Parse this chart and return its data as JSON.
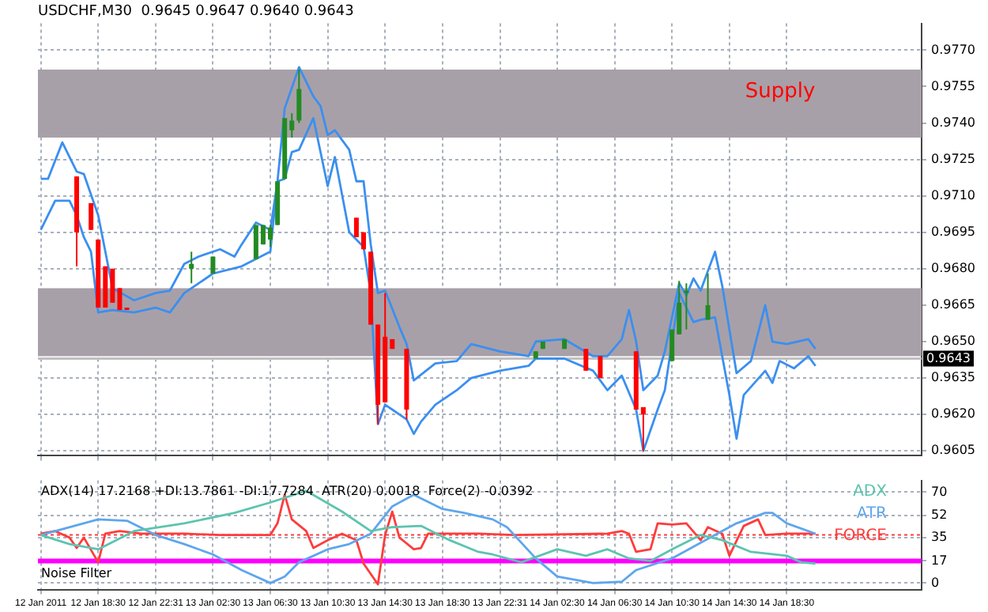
{
  "chart_data": [
    {
      "type": "candlestick",
      "title": "USDCHF,M30  0.9645 0.9647 0.9640 0.9643",
      "x": [
        "2011-01-12T17:00",
        "2011-01-12T18:00",
        "2011-01-12T18:30",
        "2011-01-12T19:00",
        "2011-01-12T19:30",
        "2011-01-12T20:00",
        "2011-01-12T20:30",
        "2011-01-13T01:00",
        "2011-01-13T02:30",
        "2011-01-13T05:30",
        "2011-01-13T06:00",
        "2011-01-13T06:30",
        "2011-01-13T07:00",
        "2011-01-13T07:30",
        "2011-01-13T08:00",
        "2011-01-13T08:30",
        "2011-01-13T12:30",
        "2011-01-13T13:00",
        "2011-01-13T13:30",
        "2011-01-13T14:00",
        "2011-01-13T14:30",
        "2011-01-13T15:00",
        "2011-01-13T16:00",
        "2011-01-14T01:00",
        "2011-01-14T01:30",
        "2011-01-14T03:00",
        "2011-01-14T04:30",
        "2011-01-14T05:30",
        "2011-01-14T08:00",
        "2011-01-14T08:30",
        "2011-01-14T10:30",
        "2011-01-14T11:00",
        "2011-01-14T11:30",
        "2011-01-14T13:00"
      ],
      "ohlc": [
        [
          0.9718,
          0.9718,
          0.9681,
          0.9695
        ],
        [
          0.9707,
          0.9707,
          0.9696,
          0.9696
        ],
        [
          0.9692,
          0.9692,
          0.9664,
          0.9664
        ],
        [
          0.9681,
          0.9681,
          0.9664,
          0.9664
        ],
        [
          0.968,
          0.968,
          0.9666,
          0.9666
        ],
        [
          0.9672,
          0.9672,
          0.9663,
          0.9663
        ],
        [
          0.9664,
          0.9664,
          0.9663,
          0.9663
        ],
        [
          0.968,
          0.9687,
          0.9674,
          0.9682
        ],
        [
          0.9678,
          0.9685,
          0.9678,
          0.9685
        ],
        [
          0.9684,
          0.9698,
          0.9684,
          0.9698
        ],
        [
          0.969,
          0.9698,
          0.969,
          0.9698
        ],
        [
          0.9692,
          0.9698,
          0.9689,
          0.9697
        ],
        [
          0.9698,
          0.9716,
          0.9698,
          0.9716
        ],
        [
          0.9717,
          0.9742,
          0.9717,
          0.9742
        ],
        [
          0.9737,
          0.9744,
          0.9734,
          0.9741
        ],
        [
          0.9741,
          0.9762,
          0.974,
          0.9754
        ],
        [
          0.9701,
          0.9701,
          0.9693,
          0.9693
        ],
        [
          0.9695,
          0.9695,
          0.9688,
          0.9688
        ],
        [
          0.9687,
          0.9687,
          0.9657,
          0.9657
        ],
        [
          0.9657,
          0.9657,
          0.9616,
          0.9624
        ],
        [
          0.9652,
          0.967,
          0.9625,
          0.9625
        ],
        [
          0.9651,
          0.9651,
          0.9647,
          0.9647
        ],
        [
          0.9647,
          0.9647,
          0.9618,
          0.9622
        ],
        [
          0.9643,
          0.9646,
          0.9643,
          0.9646
        ],
        [
          0.9647,
          0.965,
          0.9647,
          0.965
        ],
        [
          0.9647,
          0.9651,
          0.9647,
          0.9651
        ],
        [
          0.9647,
          0.9647,
          0.9638,
          0.9638
        ],
        [
          0.9644,
          0.9644,
          0.9635,
          0.9635
        ],
        [
          0.9646,
          0.9646,
          0.9622,
          0.9622
        ],
        [
          0.9623,
          0.9623,
          0.9605,
          0.962
        ],
        [
          0.9642,
          0.9655,
          0.9642,
          0.9655
        ],
        [
          0.9653,
          0.9675,
          0.9653,
          0.9666
        ],
        [
          0.967,
          0.9674,
          0.9655,
          0.9671
        ],
        [
          0.9659,
          0.9678,
          0.9659,
          0.9665
        ]
      ],
      "colors": [
        "#ff0000",
        "#ff0000",
        "#ff0000",
        "#ff0000",
        "#ff0000",
        "#ff0000",
        "#ff0000",
        "#228b22",
        "#228b22",
        "#228b22",
        "#228b22",
        "#228b22",
        "#228b22",
        "#228b22",
        "#228b22",
        "#228b22",
        "#ff0000",
        "#ff0000",
        "#ff0000",
        "#ff0000",
        "#ff0000",
        "#ff0000",
        "#ff0000",
        "#228b22",
        "#228b22",
        "#228b22",
        "#ff0000",
        "#ff0000",
        "#ff0000",
        "#ff0000",
        "#228b22",
        "#228b22",
        "#228b22",
        "#228b22"
      ],
      "series": [
        {
          "type": "line",
          "color": "#3b8ff0",
          "x": [
            "2011-01-12T14:30",
            "2011-01-12T15:00",
            "2011-01-12T16:00",
            "2011-01-12T17:00",
            "2011-01-12T17:30",
            "2011-01-12T18:30",
            "2011-01-12T19:30",
            "2011-01-12T21:00",
            "2011-01-12T22:30",
            "2011-01-12T23:30",
            "2011-01-13T00:30",
            "2011-01-13T01:30",
            "2011-01-13T03:00",
            "2011-01-13T04:00",
            "2011-01-13T04:30",
            "2011-01-13T05:30",
            "2011-01-13T06:30",
            "2011-01-13T07:00",
            "2011-01-13T07:30",
            "2011-01-13T08:30",
            "2011-01-13T09:30",
            "2011-01-13T10:00",
            "2011-01-13T10:30",
            "2011-01-13T11:00",
            "2011-01-13T12:00",
            "2011-01-13T12:30",
            "2011-01-13T13:00",
            "2011-01-13T13:30",
            "2011-01-13T14:00",
            "2011-01-13T14:30",
            "2011-01-13T15:30",
            "2011-01-13T16:00",
            "2011-01-13T16:30",
            "2011-01-13T18:00",
            "2011-01-13T19:30",
            "2011-01-13T20:30",
            "2011-01-13T22:30",
            "2011-01-14T00:30",
            "2011-01-14T01:00",
            "2011-01-14T03:00",
            "2011-01-14T05:00",
            "2011-01-14T06:00",
            "2011-01-14T07:00",
            "2011-01-14T07:30",
            "2011-01-14T08:00",
            "2011-01-14T08:30",
            "2011-01-14T09:30",
            "2011-01-14T10:00",
            "2011-01-14T11:00",
            "2011-01-14T11:30",
            "2011-01-14T12:00",
            "2011-01-14T12:30",
            "2011-01-14T13:30",
            "2011-01-14T14:00",
            "2011-01-14T15:00",
            "2011-01-14T16:00",
            "2011-01-14T17:00",
            "2011-01-14T17:30",
            "2011-01-14T18:30",
            "2011-01-14T20:00",
            "2011-01-14T20:30"
          ],
          "values": [
            0.9717,
            0.9717,
            0.9732,
            0.972,
            0.9719,
            0.9702,
            0.9672,
            0.9667,
            0.967,
            0.9671,
            0.9682,
            0.9685,
            0.9688,
            0.9685,
            0.969,
            0.9699,
            0.9696,
            0.9716,
            0.9746,
            0.9763,
            0.9751,
            0.9747,
            0.9735,
            0.9737,
            0.9729,
            0.9716,
            0.9716,
            0.969,
            0.967,
            0.9671,
            0.9656,
            0.9649,
            0.9634,
            0.9641,
            0.9642,
            0.9649,
            0.9646,
            0.9644,
            0.965,
            0.9651,
            0.9644,
            0.9644,
            0.9651,
            0.9663,
            0.965,
            0.963,
            0.9636,
            0.9646,
            0.9674,
            0.9669,
            0.9676,
            0.9671,
            0.9687,
            0.9673,
            0.9637,
            0.9642,
            0.9665,
            0.965,
            0.9649,
            0.9651,
            0.9647
          ]
        },
        {
          "type": "line",
          "color": "#3b8ff0",
          "x": [
            "2011-01-12T14:30",
            "2011-01-12T15:30",
            "2011-01-12T16:30",
            "2011-01-12T17:00",
            "2011-01-12T17:30",
            "2011-01-12T18:00",
            "2011-01-12T18:30",
            "2011-01-12T19:30",
            "2011-01-12T21:00",
            "2011-01-12T22:30",
            "2011-01-12T23:30",
            "2011-01-13T00:30",
            "2011-01-13T01:30",
            "2011-01-13T02:30",
            "2011-01-13T04:30",
            "2011-01-13T05:30",
            "2011-01-13T06:30",
            "2011-01-13T07:00",
            "2011-01-13T07:30",
            "2011-01-13T08:00",
            "2011-01-13T08:30",
            "2011-01-13T09:30",
            "2011-01-13T10:30",
            "2011-01-13T11:00",
            "2011-01-13T12:00",
            "2011-01-13T13:00",
            "2011-01-13T13:30",
            "2011-01-13T14:00",
            "2011-01-13T14:30",
            "2011-01-13T15:00",
            "2011-01-13T16:00",
            "2011-01-13T16:30",
            "2011-01-13T17:00",
            "2011-01-13T18:00",
            "2011-01-13T19:30",
            "2011-01-13T20:30",
            "2011-01-13T22:30",
            "2011-01-14T00:30",
            "2011-01-14T01:00",
            "2011-01-14T03:00",
            "2011-01-14T05:00",
            "2011-01-14T06:00",
            "2011-01-14T07:00",
            "2011-01-14T08:00",
            "2011-01-14T08:30",
            "2011-01-14T09:30",
            "2011-01-14T10:00",
            "2011-01-14T11:00",
            "2011-01-14T12:00",
            "2011-01-14T12:30",
            "2011-01-14T13:30",
            "2011-01-14T14:00",
            "2011-01-14T14:30",
            "2011-01-14T15:00",
            "2011-01-14T15:30",
            "2011-01-14T17:00",
            "2011-01-14T17:30",
            "2011-01-14T18:00",
            "2011-01-14T19:00",
            "2011-01-14T20:00",
            "2011-01-14T20:30"
          ],
          "values": [
            0.9696,
            0.9708,
            0.9708,
            0.9702,
            0.9693,
            0.9687,
            0.9662,
            0.9663,
            0.9662,
            0.9664,
            0.9662,
            0.967,
            0.9674,
            0.9678,
            0.9681,
            0.9684,
            0.9687,
            0.9716,
            0.9717,
            0.9728,
            0.9729,
            0.9742,
            0.9714,
            0.9726,
            0.9695,
            0.9689,
            0.967,
            0.9616,
            0.9624,
            0.9622,
            0.9618,
            0.9612,
            0.9617,
            0.9624,
            0.963,
            0.9635,
            0.9638,
            0.964,
            0.9643,
            0.9643,
            0.9638,
            0.963,
            0.9636,
            0.9622,
            0.9605,
            0.9622,
            0.963,
            0.967,
            0.9658,
            0.9659,
            0.966,
            0.9644,
            0.9628,
            0.961,
            0.9628,
            0.9638,
            0.9633,
            0.9642,
            0.9639,
            0.9644,
            0.964
          ]
        }
      ],
      "xlim": [
        "2011-01-12T14:18",
        "2011-01-15T03:54"
      ],
      "xticks": [
        {
          "value": "2011-01-12T14:30",
          "label": null
        },
        {
          "value": "2011-01-12T18:30",
          "label": null
        },
        {
          "value": "2011-01-12T22:31",
          "label": null
        },
        {
          "value": "2011-01-13T02:30",
          "label": null
        },
        {
          "value": "2011-01-13T06:30",
          "label": null
        },
        {
          "value": "2011-01-13T10:30",
          "label": null
        },
        {
          "value": "2011-01-13T14:30",
          "label": null
        },
        {
          "value": "2011-01-13T18:30",
          "label": null
        },
        {
          "value": "2011-01-13T22:31",
          "label": null
        },
        {
          "value": "2011-01-14T02:30",
          "label": null
        },
        {
          "value": "2011-01-14T06:30",
          "label": null
        },
        {
          "value": "2011-01-14T10:30",
          "label": null
        },
        {
          "value": "2011-01-14T14:30",
          "label": null
        },
        {
          "value": "2011-01-14T18:30",
          "label": null
        }
      ],
      "ylim": [
        0.9603,
        0.9781
      ],
      "yticks": [
        {
          "value": 0.9605,
          "label": "0.9605"
        },
        {
          "value": 0.962,
          "label": "0.9620"
        },
        {
          "value": 0.9635,
          "label": "0.9635"
        },
        {
          "value": 0.965,
          "label": "0.9650"
        },
        {
          "value": 0.9665,
          "label": "0.9665"
        },
        {
          "value": 0.968,
          "label": "0.9680"
        },
        {
          "value": 0.9695,
          "label": "0.9695"
        },
        {
          "value": 0.971,
          "label": "0.9710"
        },
        {
          "value": 0.9725,
          "label": "0.9725"
        },
        {
          "value": 0.974,
          "label": "0.9740"
        },
        {
          "value": 0.9755,
          "label": "0.9755"
        },
        {
          "value": 0.977,
          "label": "0.9770"
        }
      ],
      "bands": [
        {
          "axis": "y",
          "from": 0.9734,
          "to": 0.9762,
          "label": "Supply",
          "color": "#a8a0a8"
        },
        {
          "axis": "y",
          "from": 0.9644,
          "to": 0.9672,
          "color": "#a8a0a8"
        }
      ],
      "ref_lines": [
        {
          "axis": "y",
          "value": 0.9643,
          "label": "0.9643",
          "color": "#c0c0c0"
        }
      ],
      "grid": true,
      "tick_labels": "y"
    },
    {
      "type": "line",
      "annotations": [
        "ADX(14) 17.2168 +DI:13.7861 -DI:17.7284  ATR(20) 0.0018  Force(2) -0.0392"
      ],
      "series": [
        {
          "name": "ADX",
          "color": "#5cc4b0",
          "x": [
            "2011-01-12T14:30",
            "2011-01-12T16:30",
            "2011-01-12T18:30",
            "2011-01-12T21:00",
            "2011-01-13T00:30",
            "2011-01-13T04:00",
            "2011-01-13T06:30",
            "2011-01-13T09:00",
            "2011-01-13T11:30",
            "2011-01-13T13:30",
            "2011-01-13T15:00",
            "2011-01-13T17:00",
            "2011-01-13T19:00",
            "2011-01-13T21:00",
            "2011-01-13T22:00",
            "2011-01-14T00:00",
            "2011-01-14T02:30",
            "2011-01-14T04:30",
            "2011-01-14T06:00",
            "2011-01-14T07:30",
            "2011-01-14T09:00",
            "2011-01-14T10:30",
            "2011-01-14T12:30",
            "2011-01-14T14:00",
            "2011-01-14T16:00",
            "2011-01-14T18:30",
            "2011-01-14T19:30",
            "2011-01-14T20:30"
          ],
          "values": [
            37,
            30,
            26,
            40,
            46,
            54,
            62,
            71,
            55,
            40,
            43,
            44,
            33,
            24,
            22,
            16,
            26,
            21,
            26,
            19,
            17,
            26,
            37,
            33,
            24,
            21,
            16,
            15
          ]
        },
        {
          "name": "ATR",
          "color": "#5ea6ee",
          "x": [
            "2011-01-12T14:30",
            "2011-01-12T18:30",
            "2011-01-12T20:30",
            "2011-01-12T22:30",
            "2011-01-13T00:30",
            "2011-01-13T02:30",
            "2011-01-13T04:30",
            "2011-01-13T06:30",
            "2011-01-13T07:30",
            "2011-01-13T08:30",
            "2011-01-13T10:30",
            "2011-01-13T12:00",
            "2011-01-13T13:30",
            "2011-01-13T15:00",
            "2011-01-13T16:30",
            "2011-01-13T18:30",
            "2011-01-13T20:00",
            "2011-01-13T22:00",
            "2011-01-13T23:00",
            "2011-01-14T01:00",
            "2011-01-14T02:30",
            "2011-01-14T05:00",
            "2011-01-14T07:00",
            "2011-01-14T08:00",
            "2011-01-14T10:30",
            "2011-01-14T13:30",
            "2011-01-14T15:00",
            "2011-01-14T17:00",
            "2011-01-14T17:30",
            "2011-01-14T18:30",
            "2011-01-14T20:30"
          ],
          "values": [
            37,
            49,
            48,
            37,
            30,
            22,
            10,
            0,
            5,
            16,
            26,
            30,
            38,
            59,
            68,
            57,
            54,
            49,
            43,
            19,
            5,
            0,
            1,
            10,
            19,
            37,
            46,
            54,
            54,
            46,
            38
          ]
        },
        {
          "name": "FORCE",
          "color": "#ff3c3c",
          "x": [
            "2011-01-12T14:30",
            "2011-01-12T15:30",
            "2011-01-12T16:30",
            "2011-01-12T17:00",
            "2011-01-12T17:30",
            "2011-01-12T18:30",
            "2011-01-12T19:00",
            "2011-01-12T20:00",
            "2011-01-12T21:30",
            "2011-01-13T00:30",
            "2011-01-13T03:00",
            "2011-01-13T06:30",
            "2011-01-13T07:00",
            "2011-01-13T07:30",
            "2011-01-13T08:00",
            "2011-01-13T09:00",
            "2011-01-13T09:30",
            "2011-01-13T10:30",
            "2011-01-13T11:30",
            "2011-01-13T12:30",
            "2011-01-13T13:00",
            "2011-01-13T14:00",
            "2011-01-13T14:30",
            "2011-01-13T15:00",
            "2011-01-13T15:30",
            "2011-01-13T16:30",
            "2011-01-13T17:00",
            "2011-01-13T17:30",
            "2011-01-13T21:00",
            "2011-01-13T23:30",
            "2011-01-14T06:00",
            "2011-01-14T07:00",
            "2011-01-14T07:30",
            "2011-01-14T08:00",
            "2011-01-14T09:00",
            "2011-01-14T09:30",
            "2011-01-14T10:30",
            "2011-01-14T11:30",
            "2011-01-14T12:30",
            "2011-01-14T13:00",
            "2011-01-14T14:00",
            "2011-01-14T14:30",
            "2011-01-14T15:30",
            "2011-01-14T16:30",
            "2011-01-14T17:00",
            "2011-01-14T18:30",
            "2011-01-14T20:30"
          ],
          "values": [
            38,
            40,
            35,
            27,
            35,
            16,
            38,
            40,
            38,
            38,
            37,
            37,
            46,
            68,
            49,
            40,
            27,
            33,
            38,
            33,
            15,
            -1,
            37,
            55,
            35,
            26,
            27,
            38,
            38,
            37,
            38,
            40,
            38,
            24,
            26,
            46,
            45,
            46,
            33,
            43,
            38,
            21,
            44,
            49,
            37,
            38,
            38
          ]
        }
      ],
      "xlim": [
        "2011-01-12T14:18",
        "2011-01-15T03:54"
      ],
      "xticks": [
        {
          "value": "2011-01-12T14:30",
          "label": "12 Jan 2011"
        },
        {
          "value": "2011-01-12T18:30",
          "label": "12 Jan 18:30"
        },
        {
          "value": "2011-01-12T22:31",
          "label": "12 Jan 22:31"
        },
        {
          "value": "2011-01-13T02:30",
          "label": "13 Jan 02:30"
        },
        {
          "value": "2011-01-13T06:30",
          "label": "13 Jan 06:30"
        },
        {
          "value": "2011-01-13T10:30",
          "label": "13 Jan 10:30"
        },
        {
          "value": "2011-01-13T14:30",
          "label": "13 Jan 14:30"
        },
        {
          "value": "2011-01-13T18:30",
          "label": "13 Jan 18:30"
        },
        {
          "value": "2011-01-13T22:31",
          "label": "13 Jan 22:31"
        },
        {
          "value": "2011-01-14T02:30",
          "label": "14 Jan 02:30"
        },
        {
          "value": "2011-01-14T06:30",
          "label": "14 Jan 06:30"
        },
        {
          "value": "2011-01-14T10:30",
          "label": "14 Jan 10:30"
        },
        {
          "value": "2011-01-14T14:30",
          "label": "14 Jan 14:30"
        },
        {
          "value": "2011-01-14T18:30",
          "label": "14 Jan 18:30"
        }
      ],
      "ylim": [
        -5,
        79
      ],
      "yticks": [
        0,
        17,
        35,
        52,
        70
      ],
      "ref_lines": [
        {
          "axis": "y",
          "value": 17,
          "label": "Noise Filter",
          "color": "#ff00ff"
        },
        {
          "axis": "y",
          "value": 37,
          "color": "#ff3c3c",
          "line_style": "dotted"
        }
      ],
      "grid": true,
      "legend": "top right"
    }
  ]
}
